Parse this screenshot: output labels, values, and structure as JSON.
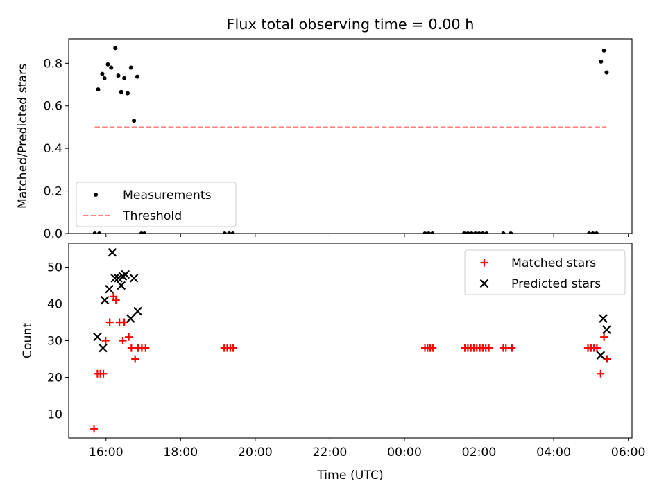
{
  "chart_data": [
    {
      "type": "scatter",
      "title": "Flux total observing time = 0.00 h",
      "xlabel": "",
      "ylabel": "Matched/Predicted stars",
      "xlim": [
        15.0,
        30.1
      ],
      "ylim": [
        0.0,
        0.915
      ],
      "y_ticks": [
        0.0,
        0.2,
        0.4,
        0.6,
        0.8
      ],
      "y_tick_labels": [
        "0.0",
        "0.2",
        "0.4",
        "0.6",
        "0.8"
      ],
      "x_ticks": [
        16,
        18,
        20,
        22,
        24,
        26,
        28,
        30
      ],
      "legend_position": "lower-left",
      "series": [
        {
          "name": "Measurements",
          "kind": "scatter",
          "marker": "dot",
          "color": "#000000",
          "points": [
            [
              15.7,
              0.0
            ],
            [
              15.82,
              0.0
            ],
            [
              15.79,
              0.677
            ],
            [
              15.9,
              0.75
            ],
            [
              15.96,
              0.73
            ],
            [
              16.05,
              0.795
            ],
            [
              16.14,
              0.78
            ],
            [
              16.25,
              0.872
            ],
            [
              16.33,
              0.742
            ],
            [
              16.41,
              0.665
            ],
            [
              16.49,
              0.73
            ],
            [
              16.58,
              0.659
            ],
            [
              16.67,
              0.78
            ],
            [
              16.75,
              0.53
            ],
            [
              16.84,
              0.737
            ],
            [
              16.95,
              0.0
            ],
            [
              17.03,
              0.0
            ],
            [
              19.18,
              0.0
            ],
            [
              19.3,
              0.0
            ],
            [
              19.4,
              0.0
            ],
            [
              24.55,
              0.0
            ],
            [
              24.65,
              0.0
            ],
            [
              24.75,
              0.0
            ],
            [
              25.6,
              0.0
            ],
            [
              25.7,
              0.0
            ],
            [
              25.8,
              0.0
            ],
            [
              25.9,
              0.0
            ],
            [
              26.0,
              0.0
            ],
            [
              26.1,
              0.0
            ],
            [
              26.2,
              0.0
            ],
            [
              26.65,
              0.0
            ],
            [
              26.85,
              0.0
            ],
            [
              28.95,
              0.0
            ],
            [
              29.05,
              0.0
            ],
            [
              29.15,
              0.0
            ],
            [
              29.27,
              0.808
            ],
            [
              29.35,
              0.86
            ],
            [
              29.42,
              0.757
            ]
          ]
        },
        {
          "name": "Threshold",
          "kind": "line",
          "style": "dashed",
          "color": "#ff7f7f",
          "points": [
            [
              15.7,
              0.5
            ],
            [
              29.42,
              0.5
            ]
          ]
        }
      ]
    },
    {
      "type": "scatter",
      "title": "",
      "xlabel": "Time (UTC)",
      "ylabel": "Count",
      "xlim": [
        15.0,
        30.1
      ],
      "ylim": [
        3.5,
        56.5
      ],
      "y_ticks": [
        10,
        20,
        30,
        40,
        50
      ],
      "y_tick_labels": [
        "10",
        "20",
        "30",
        "40",
        "50"
      ],
      "x_ticks": [
        16,
        18,
        20,
        22,
        24,
        26,
        28,
        30
      ],
      "x_tick_labels": [
        "16:00",
        "18:00",
        "20:00",
        "22:00",
        "00:00",
        "02:00",
        "04:00",
        "06:00"
      ],
      "legend_position": "upper-right",
      "series": [
        {
          "name": "Matched stars",
          "kind": "scatter",
          "marker": "plus",
          "color": "#ff0000",
          "points": [
            [
              15.68,
              6
            ],
            [
              15.77,
              21
            ],
            [
              15.85,
              21
            ],
            [
              15.93,
              21
            ],
            [
              15.99,
              30
            ],
            [
              16.1,
              35
            ],
            [
              16.2,
              42
            ],
            [
              16.27,
              41
            ],
            [
              16.36,
              35
            ],
            [
              16.45,
              30
            ],
            [
              16.49,
              35
            ],
            [
              16.61,
              31
            ],
            [
              16.68,
              28
            ],
            [
              16.78,
              25
            ],
            [
              16.86,
              28
            ],
            [
              16.96,
              28
            ],
            [
              17.06,
              28
            ],
            [
              19.17,
              28
            ],
            [
              19.25,
              28
            ],
            [
              19.33,
              28
            ],
            [
              19.41,
              28
            ],
            [
              24.55,
              28
            ],
            [
              24.62,
              28
            ],
            [
              24.69,
              28
            ],
            [
              24.76,
              28
            ],
            [
              25.62,
              28
            ],
            [
              25.7,
              28
            ],
            [
              25.78,
              28
            ],
            [
              25.86,
              28
            ],
            [
              25.94,
              28
            ],
            [
              26.02,
              28
            ],
            [
              26.1,
              28
            ],
            [
              26.18,
              28
            ],
            [
              26.26,
              28
            ],
            [
              26.65,
              28
            ],
            [
              26.72,
              28
            ],
            [
              26.88,
              28
            ],
            [
              28.92,
              28
            ],
            [
              29.0,
              28
            ],
            [
              29.08,
              28
            ],
            [
              29.16,
              28
            ],
            [
              29.26,
              21
            ],
            [
              29.35,
              31
            ],
            [
              29.43,
              25
            ]
          ]
        },
        {
          "name": "Predicted stars",
          "kind": "scatter",
          "marker": "x",
          "color": "#000000",
          "points": [
            [
              15.77,
              31
            ],
            [
              15.92,
              28
            ],
            [
              15.97,
              41
            ],
            [
              16.09,
              44
            ],
            [
              16.17,
              54
            ],
            [
              16.24,
              47
            ],
            [
              16.33,
              47
            ],
            [
              16.41,
              45
            ],
            [
              16.45,
              47.5
            ],
            [
              16.52,
              48
            ],
            [
              16.66,
              36
            ],
            [
              16.75,
              47
            ],
            [
              16.85,
              38
            ],
            [
              29.26,
              26
            ],
            [
              29.33,
              36
            ],
            [
              29.42,
              33
            ]
          ]
        }
      ]
    }
  ]
}
